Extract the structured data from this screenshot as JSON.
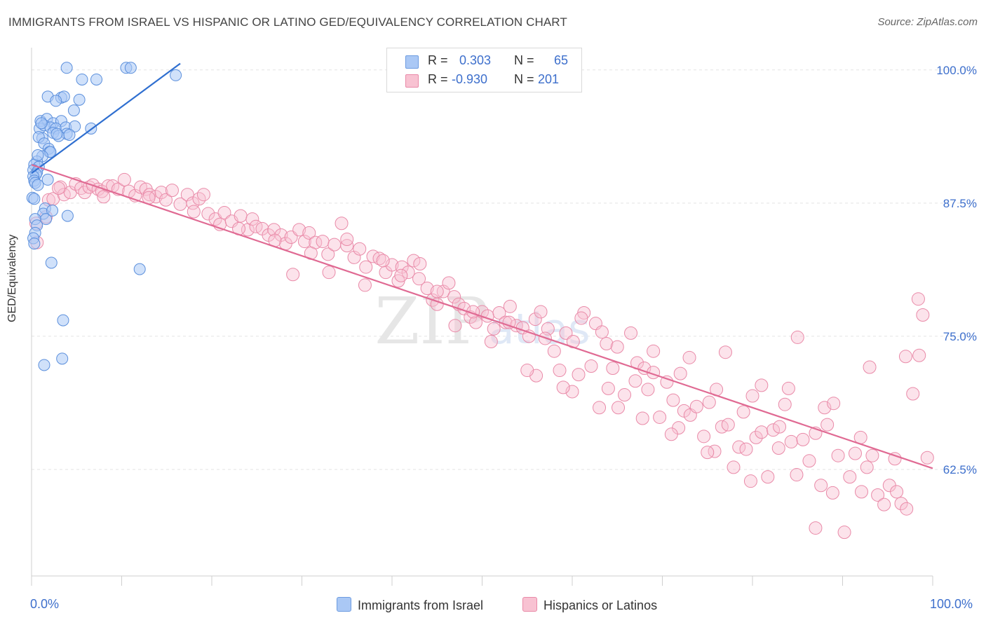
{
  "title": "IMMIGRANTS FROM ISRAEL VS HISPANIC OR LATINO GED/EQUIVALENCY CORRELATION CHART",
  "source": "Source: ZipAtlas.com",
  "watermark": "ZIPatlas",
  "legend": {
    "r_label": "R =",
    "n_label": "N =",
    "rows": [
      {
        "r": "0.303",
        "n": "65",
        "color": "#aac8f5",
        "border": "#6c9be0"
      },
      {
        "r": "-0.930",
        "n": "201",
        "color": "#f8c2d2",
        "border": "#e98aa8"
      }
    ]
  },
  "bottom_legend": {
    "israel": "Immigrants from Israel",
    "hispanic": "Hispanics or Latinos"
  },
  "colors": {
    "israel_fill": "#aac8f5",
    "israel_stroke": "#5b8fdc",
    "israel_line": "#2f6fd0",
    "hispanic_fill": "#f8c2d2",
    "hispanic_stroke": "#e98aa8",
    "hispanic_line": "#e06a93",
    "axis_text": "#3d6fcc",
    "grid": "#e3e3e3"
  },
  "chart_data": {
    "type": "scatter",
    "title": "IMMIGRANTS FROM ISRAEL VS HISPANIC OR LATINO GED/EQUIVALENCY CORRELATION CHART",
    "xlabel": "",
    "ylabel": "GED/Equivalency",
    "xlim": [
      0,
      100
    ],
    "ylim": [
      52.5,
      101.5
    ],
    "x_tick_labels": [
      "0.0%",
      "100.0%"
    ],
    "y_ticks": [
      62.5,
      75.0,
      87.5,
      100.0
    ],
    "y_tick_labels": [
      "62.5%",
      "75.0%",
      "87.5%",
      "100.0%"
    ],
    "grid": true,
    "series": [
      {
        "name": "Immigrants from Israel",
        "points": [
          [
            3.9,
            100.2
          ],
          [
            10.5,
            100.2
          ],
          [
            11.0,
            100.2
          ],
          [
            5.6,
            99.1
          ],
          [
            7.2,
            99.1
          ],
          [
            16.0,
            99.5
          ],
          [
            1.8,
            97.5
          ],
          [
            3.3,
            97.4
          ],
          [
            3.6,
            97.5
          ],
          [
            2.7,
            97.1
          ],
          [
            5.3,
            97.2
          ],
          [
            4.7,
            96.2
          ],
          [
            1.0,
            95.2
          ],
          [
            1.7,
            95.4
          ],
          [
            2.4,
            95.0
          ],
          [
            3.3,
            95.2
          ],
          [
            0.9,
            94.5
          ],
          [
            1.4,
            94.8
          ],
          [
            2.1,
            94.6
          ],
          [
            2.7,
            94.5
          ],
          [
            3.8,
            94.6
          ],
          [
            4.8,
            94.7
          ],
          [
            6.6,
            94.5
          ],
          [
            1.2,
            93.6
          ],
          [
            0.8,
            93.7
          ],
          [
            2.4,
            94.1
          ],
          [
            3.9,
            94.0
          ],
          [
            3.0,
            93.8
          ],
          [
            1.4,
            93.1
          ],
          [
            1.9,
            92.6
          ],
          [
            2.0,
            92.3
          ],
          [
            2.1,
            92.3
          ],
          [
            1.2,
            91.9
          ],
          [
            0.6,
            91.4
          ],
          [
            0.3,
            91.1
          ],
          [
            0.8,
            90.9
          ],
          [
            0.2,
            90.6
          ],
          [
            0.6,
            90.4
          ],
          [
            0.5,
            90.2
          ],
          [
            0.2,
            90.0
          ],
          [
            0.3,
            89.6
          ],
          [
            0.4,
            89.4
          ],
          [
            0.7,
            89.2
          ],
          [
            1.8,
            89.7
          ],
          [
            0.1,
            88.0
          ],
          [
            0.3,
            87.9
          ],
          [
            1.5,
            87.0
          ],
          [
            1.3,
            86.5
          ],
          [
            1.6,
            86.0
          ],
          [
            4.0,
            86.3
          ],
          [
            0.4,
            86.0
          ],
          [
            0.6,
            85.4
          ],
          [
            0.4,
            84.7
          ],
          [
            0.2,
            84.2
          ],
          [
            0.3,
            83.7
          ],
          [
            2.2,
            81.9
          ],
          [
            12.0,
            81.3
          ],
          [
            3.5,
            76.5
          ],
          [
            3.4,
            72.9
          ],
          [
            1.4,
            72.3
          ],
          [
            2.8,
            94.0
          ],
          [
            4.2,
            93.9
          ],
          [
            1.1,
            95.0
          ],
          [
            0.7,
            92.0
          ],
          [
            2.3,
            86.8
          ]
        ]
      },
      {
        "name": "Hispanics or Latinos",
        "points": [
          [
            0.5,
            85.6
          ],
          [
            0.6,
            83.8
          ],
          [
            1.6,
            86.2
          ],
          [
            1.9,
            87.8
          ],
          [
            2.4,
            87.9
          ],
          [
            3.2,
            89.0
          ],
          [
            3.6,
            88.3
          ],
          [
            4.3,
            88.5
          ],
          [
            4.9,
            89.3
          ],
          [
            5.5,
            88.9
          ],
          [
            5.9,
            88.5
          ],
          [
            6.4,
            89.0
          ],
          [
            6.8,
            89.2
          ],
          [
            7.4,
            88.8
          ],
          [
            7.8,
            88.6
          ],
          [
            8.5,
            89.1
          ],
          [
            9.0,
            89.1
          ],
          [
            9.6,
            88.8
          ],
          [
            10.3,
            89.7
          ],
          [
            10.8,
            88.6
          ],
          [
            11.5,
            88.2
          ],
          [
            12.1,
            89.0
          ],
          [
            12.7,
            88.8
          ],
          [
            13.1,
            88.3
          ],
          [
            13.8,
            88.1
          ],
          [
            14.4,
            88.5
          ],
          [
            14.9,
            87.8
          ],
          [
            15.6,
            88.7
          ],
          [
            16.5,
            87.4
          ],
          [
            17.3,
            88.3
          ],
          [
            17.9,
            87.5
          ],
          [
            18.6,
            87.9
          ],
          [
            19.1,
            88.3
          ],
          [
            19.6,
            86.5
          ],
          [
            20.4,
            86.0
          ],
          [
            20.9,
            85.5
          ],
          [
            21.4,
            86.6
          ],
          [
            22.2,
            85.8
          ],
          [
            23.2,
            86.3
          ],
          [
            24.0,
            85.0
          ],
          [
            24.5,
            86.0
          ],
          [
            24.9,
            85.3
          ],
          [
            25.6,
            85.1
          ],
          [
            26.3,
            84.5
          ],
          [
            26.9,
            85.0
          ],
          [
            27.7,
            84.5
          ],
          [
            28.2,
            83.7
          ],
          [
            28.8,
            84.3
          ],
          [
            29.7,
            85.0
          ],
          [
            30.3,
            83.9
          ],
          [
            30.8,
            84.7
          ],
          [
            31.5,
            83.8
          ],
          [
            32.3,
            83.9
          ],
          [
            32.9,
            82.7
          ],
          [
            33.6,
            83.6
          ],
          [
            34.4,
            85.6
          ],
          [
            35.0,
            83.5
          ],
          [
            35.8,
            82.4
          ],
          [
            36.4,
            83.2
          ],
          [
            37.1,
            81.5
          ],
          [
            37.9,
            82.5
          ],
          [
            38.6,
            82.3
          ],
          [
            39.3,
            81.0
          ],
          [
            40.0,
            81.7
          ],
          [
            40.7,
            80.2
          ],
          [
            41.1,
            81.5
          ],
          [
            41.8,
            81.0
          ],
          [
            42.4,
            82.1
          ],
          [
            43.1,
            81.8
          ],
          [
            43.9,
            79.5
          ],
          [
            44.5,
            78.4
          ],
          [
            45.0,
            78.0
          ],
          [
            45.7,
            79.2
          ],
          [
            46.3,
            80.0
          ],
          [
            46.9,
            78.7
          ],
          [
            47.4,
            78.0
          ],
          [
            48.0,
            77.6
          ],
          [
            48.7,
            76.8
          ],
          [
            49.3,
            76.3
          ],
          [
            50.0,
            77.3
          ],
          [
            50.6,
            76.9
          ],
          [
            51.3,
            75.7
          ],
          [
            51.9,
            77.2
          ],
          [
            52.6,
            76.3
          ],
          [
            53.1,
            77.8
          ],
          [
            53.8,
            76.0
          ],
          [
            54.5,
            75.8
          ],
          [
            55.2,
            75.0
          ],
          [
            55.9,
            76.6
          ],
          [
            56.5,
            77.3
          ],
          [
            57.3,
            75.7
          ],
          [
            58.0,
            73.6
          ],
          [
            58.6,
            71.8
          ],
          [
            59.3,
            75.3
          ],
          [
            60.1,
            74.5
          ],
          [
            60.7,
            71.4
          ],
          [
            61.3,
            77.2
          ],
          [
            62.1,
            72.2
          ],
          [
            62.6,
            76.2
          ],
          [
            63.3,
            75.4
          ],
          [
            63.8,
            74.3
          ],
          [
            64.5,
            72.0
          ],
          [
            65.1,
            68.3
          ],
          [
            65.8,
            69.5
          ],
          [
            66.5,
            75.3
          ],
          [
            67.2,
            72.5
          ],
          [
            67.8,
            67.3
          ],
          [
            68.4,
            70.0
          ],
          [
            69.0,
            73.6
          ],
          [
            69.7,
            67.4
          ],
          [
            70.5,
            70.7
          ],
          [
            71.2,
            69.0
          ],
          [
            71.8,
            66.4
          ],
          [
            72.4,
            68.0
          ],
          [
            73.1,
            67.6
          ],
          [
            73.8,
            68.4
          ],
          [
            74.6,
            65.6
          ],
          [
            75.2,
            68.8
          ],
          [
            75.8,
            64.2
          ],
          [
            76.6,
            66.5
          ],
          [
            77.3,
            66.7
          ],
          [
            77.9,
            62.7
          ],
          [
            78.5,
            64.6
          ],
          [
            79.3,
            64.4
          ],
          [
            79.8,
            61.4
          ],
          [
            80.4,
            65.5
          ],
          [
            81.0,
            66.0
          ],
          [
            81.7,
            61.8
          ],
          [
            82.3,
            66.2
          ],
          [
            82.9,
            64.5
          ],
          [
            83.6,
            68.6
          ],
          [
            84.3,
            65.1
          ],
          [
            84.9,
            62.0
          ],
          [
            85.6,
            65.3
          ],
          [
            86.3,
            63.3
          ],
          [
            87.0,
            57.0
          ],
          [
            87.6,
            61.0
          ],
          [
            88.3,
            66.7
          ],
          [
            88.9,
            60.3
          ],
          [
            89.5,
            63.8
          ],
          [
            90.2,
            56.6
          ],
          [
            90.8,
            61.8
          ],
          [
            91.4,
            64.0
          ],
          [
            92.1,
            60.4
          ],
          [
            92.7,
            62.7
          ],
          [
            93.3,
            63.8
          ],
          [
            93.9,
            60.1
          ],
          [
            94.6,
            59.2
          ],
          [
            95.2,
            61.0
          ],
          [
            95.8,
            63.5
          ],
          [
            96.5,
            59.3
          ],
          [
            97.1,
            58.8
          ],
          [
            97.8,
            69.6
          ],
          [
            98.4,
            78.5
          ],
          [
            98.9,
            77.0
          ],
          [
            99.4,
            63.6
          ],
          [
            56.0,
            71.3
          ],
          [
            60.0,
            69.8
          ],
          [
            64.0,
            70.1
          ],
          [
            68.0,
            72.0
          ],
          [
            72.0,
            71.5
          ],
          [
            76.0,
            70.0
          ],
          [
            80.0,
            69.4
          ],
          [
            84.0,
            70.1
          ],
          [
            88.0,
            68.3
          ],
          [
            92.0,
            65.5
          ],
          [
            96.0,
            60.4
          ],
          [
            98.5,
            73.2
          ],
          [
            29.0,
            80.8
          ],
          [
            33.0,
            81.0
          ],
          [
            37.0,
            79.8
          ],
          [
            41.0,
            80.7
          ],
          [
            45.0,
            79.2
          ],
          [
            49.0,
            77.3
          ],
          [
            53.0,
            76.3
          ],
          [
            57.0,
            74.8
          ],
          [
            61.0,
            76.7
          ],
          [
            65.0,
            74.0
          ],
          [
            69.0,
            71.6
          ],
          [
            73.0,
            73.0
          ],
          [
            77.0,
            73.5
          ],
          [
            81.0,
            70.4
          ],
          [
            85.0,
            74.9
          ],
          [
            89.0,
            68.7
          ],
          [
            93.0,
            72.1
          ],
          [
            97.0,
            73.1
          ],
          [
            3.0,
            88.9
          ],
          [
            8.0,
            88.1
          ],
          [
            13.0,
            88.0
          ],
          [
            18.0,
            86.7
          ],
          [
            23.0,
            85.1
          ],
          [
            27.0,
            84.0
          ],
          [
            31.0,
            82.8
          ],
          [
            35.0,
            84.1
          ],
          [
            39.0,
            82.1
          ],
          [
            43.0,
            80.4
          ],
          [
            47.0,
            76.0
          ],
          [
            51.0,
            74.5
          ],
          [
            55.0,
            71.8
          ],
          [
            59.0,
            70.2
          ],
          [
            63.0,
            68.3
          ],
          [
            67.0,
            70.8
          ],
          [
            71.0,
            65.8
          ],
          [
            75.0,
            64.1
          ],
          [
            79.0,
            67.9
          ],
          [
            83.0,
            66.5
          ],
          [
            87.0,
            65.9
          ]
        ]
      }
    ],
    "trend_lines": [
      {
        "series": "Immigrants from Israel",
        "x": [
          0.0,
          16.5
        ],
        "y": [
          90.3,
          100.6
        ]
      },
      {
        "series": "Hispanics or Latinos",
        "x": [
          0.0,
          100.0
        ],
        "y": [
          91.1,
          62.6
        ]
      }
    ]
  }
}
